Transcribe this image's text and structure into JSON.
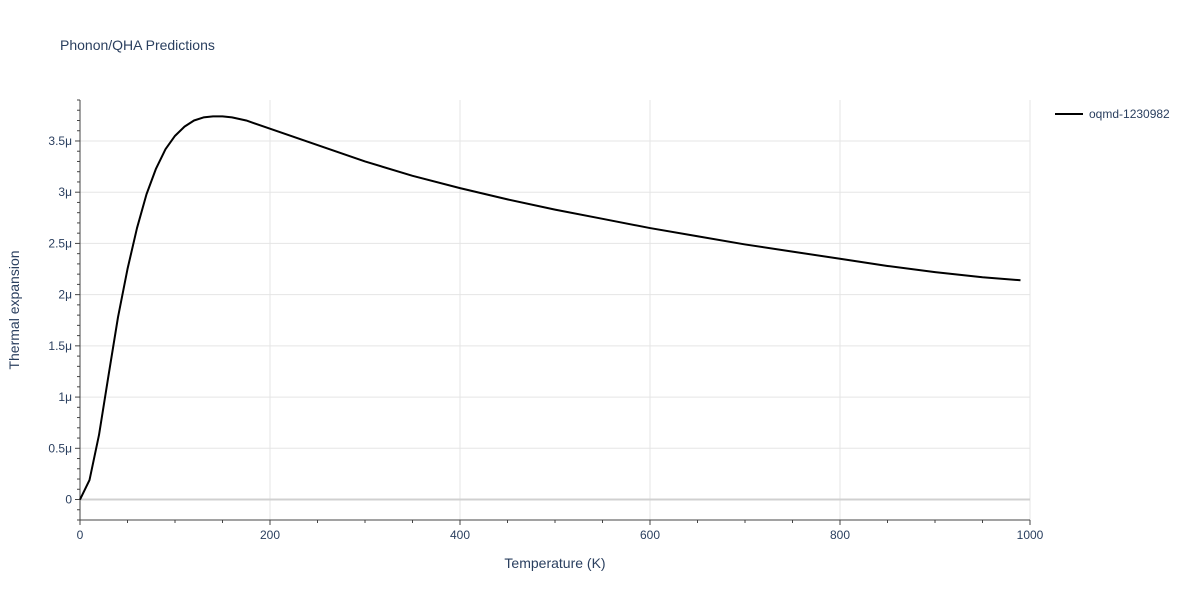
{
  "chart_data": {
    "type": "line",
    "title": "Phonon/QHA Predictions",
    "xlabel": "Temperature (K)",
    "ylabel": "Thermal expansion",
    "xlim": [
      0,
      1000
    ],
    "ylim": [
      -2e-07,
      3.9e-06
    ],
    "x_ticks": [
      0,
      200,
      400,
      600,
      800,
      1000
    ],
    "x_tick_labels": [
      "0",
      "200",
      "400",
      "600",
      "800",
      "1000"
    ],
    "y_ticks": [
      0,
      5e-07,
      1e-06,
      1.5e-06,
      2e-06,
      2.5e-06,
      3e-06,
      3.5e-06
    ],
    "y_tick_labels": [
      "0",
      "0.5μ",
      "1μ",
      "1.5μ",
      "2μ",
      "2.5μ",
      "3μ",
      "3.5μ"
    ],
    "grid": true,
    "legend_position": "top-right",
    "series": [
      {
        "name": "oqmd-1230982",
        "color": "#000000",
        "x": [
          0,
          10,
          20,
          30,
          40,
          50,
          60,
          70,
          80,
          90,
          100,
          110,
          120,
          130,
          140,
          150,
          160,
          175,
          200,
          250,
          300,
          350,
          400,
          450,
          500,
          550,
          600,
          650,
          700,
          750,
          800,
          850,
          900,
          950,
          990
        ],
        "y": [
          0,
          1.9e-07,
          6.3e-07,
          1.21e-06,
          1.78e-06,
          2.25e-06,
          2.65e-06,
          2.98e-06,
          3.23e-06,
          3.42e-06,
          3.55e-06,
          3.64e-06,
          3.7e-06,
          3.73e-06,
          3.74e-06,
          3.74e-06,
          3.73e-06,
          3.7e-06,
          3.62e-06,
          3.46e-06,
          3.3e-06,
          3.16e-06,
          3.04e-06,
          2.93e-06,
          2.83e-06,
          2.74e-06,
          2.65e-06,
          2.57e-06,
          2.49e-06,
          2.42e-06,
          2.35e-06,
          2.28e-06,
          2.22e-06,
          2.17e-06,
          2.14e-06
        ]
      }
    ]
  }
}
